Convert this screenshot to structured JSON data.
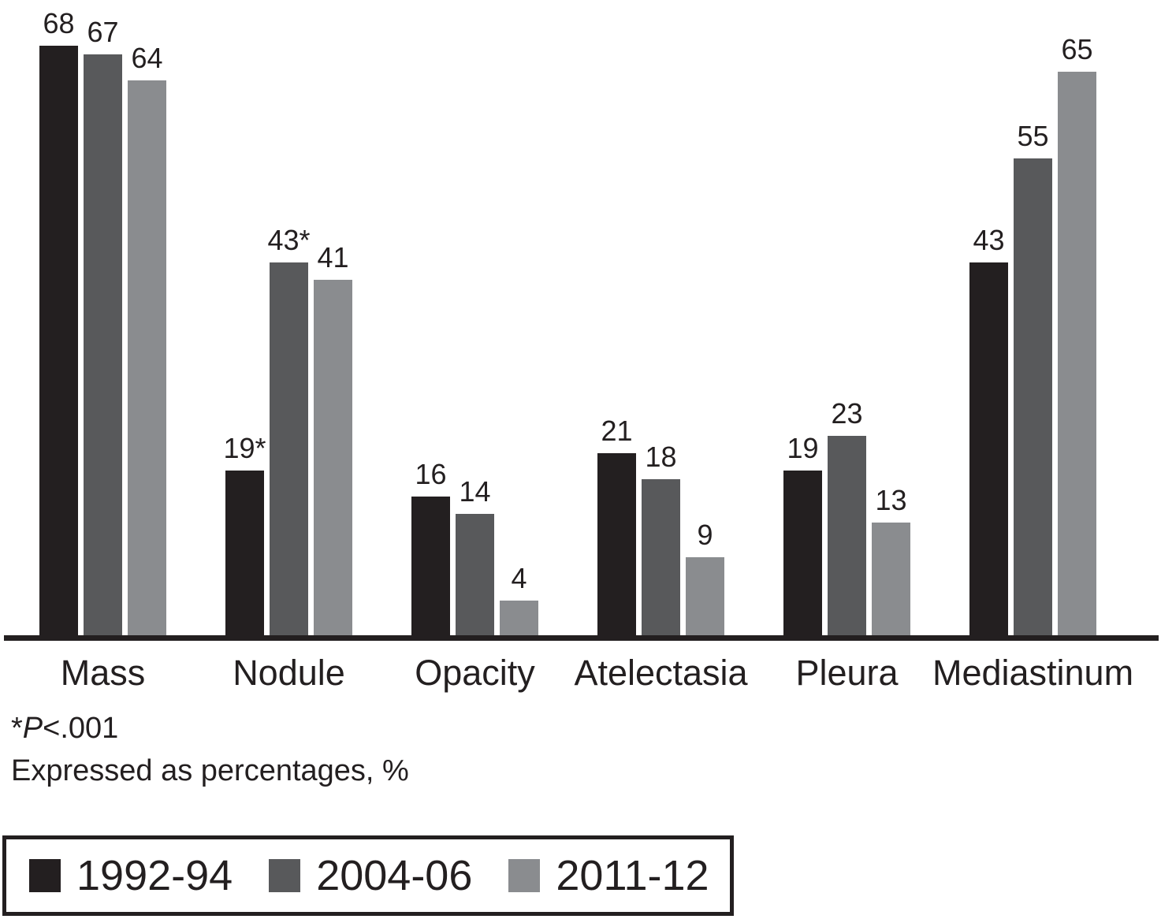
{
  "chart_data": {
    "type": "bar",
    "title": "",
    "categories": [
      "Mass",
      "Nodule",
      "Opacity",
      "Atelectasia",
      "Pleura",
      "Mediastinum"
    ],
    "series": [
      {
        "name": "1992-94",
        "color": "#231f20",
        "values": [
          68,
          19,
          16,
          21,
          19,
          43
        ],
        "bar_labels": [
          "68",
          "19*",
          "16",
          "21",
          "19",
          "43"
        ]
      },
      {
        "name": "2004-06",
        "color": "#58595b",
        "values": [
          67,
          43,
          14,
          18,
          23,
          55
        ],
        "bar_labels": [
          "67",
          "43*",
          "14",
          "18",
          "23",
          "55"
        ]
      },
      {
        "name": "2011-12",
        "color": "#8a8c8f",
        "values": [
          64,
          41,
          4,
          9,
          13,
          65
        ],
        "bar_labels": [
          "64",
          "41",
          "4",
          "9",
          "13",
          "65"
        ]
      }
    ],
    "ylim": [
      0,
      68
    ],
    "xlabel": "",
    "ylabel": "",
    "grid": false,
    "y_axis_visible": false,
    "legend_position": "bottom",
    "annotations": [
      "*P<.001",
      "Expressed as percentages, %"
    ]
  },
  "footnotes": {
    "line1_star": "*",
    "line1_p": "P",
    "line1_rest": "<.001",
    "line2": "Expressed as percentages, %"
  },
  "colors": {
    "axis": "#231f20",
    "text": "#231f20",
    "background": "#ffffff"
  }
}
